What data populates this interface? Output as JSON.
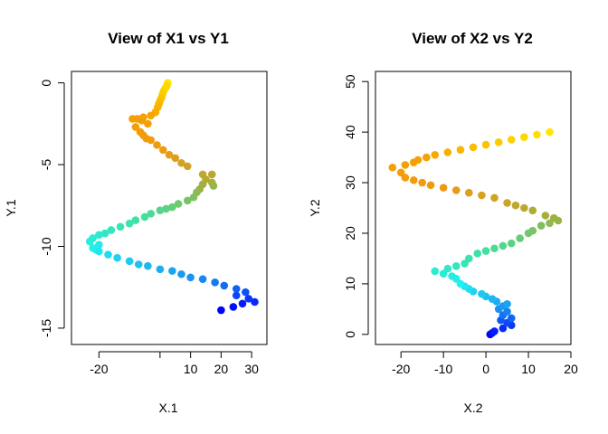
{
  "chart_data": [
    {
      "type": "scatter",
      "title": "View of X1 vs Y1",
      "xlabel": "X.1",
      "ylabel": "Y.1",
      "xlim": [
        -29,
        35
      ],
      "ylim": [
        -16,
        0.7
      ],
      "xticks": [
        -20,
        0,
        10,
        20,
        30
      ],
      "xtick_labels": [
        "-20",
        "",
        "10",
        "20",
        "30"
      ],
      "yticks": [
        -15,
        -10,
        -5,
        0
      ],
      "grid": false,
      "color_gradient": [
        "#ffe600",
        "#f5a200",
        "#f09a10",
        "#a0b040",
        "#40e0a0",
        "#20f0f0",
        "#1a8ff0",
        "#0000ff"
      ],
      "points": [
        [
          2.5,
          0
        ],
        [
          1.8,
          -0.3
        ],
        [
          2.2,
          -0.2
        ],
        [
          1.2,
          -0.5
        ],
        [
          0.8,
          -0.7
        ],
        [
          0.5,
          -0.9
        ],
        [
          0,
          -1.1
        ],
        [
          -0.4,
          -1.3
        ],
        [
          -0.8,
          -1.5
        ],
        [
          -1.5,
          -1.8
        ],
        [
          -3,
          -2.0
        ],
        [
          -5.5,
          -2.1
        ],
        [
          -7.5,
          -2.2
        ],
        [
          -9,
          -2.2
        ],
        [
          -6,
          -2.3
        ],
        [
          -4,
          -2.5
        ],
        [
          -8,
          -2.7
        ],
        [
          -6.5,
          -3.0
        ],
        [
          -5.5,
          -3.2
        ],
        [
          -4.5,
          -3.4
        ],
        [
          -3,
          -3.5
        ],
        [
          -1,
          -3.8
        ],
        [
          1,
          -4.1
        ],
        [
          3,
          -4.4
        ],
        [
          5,
          -4.6
        ],
        [
          7,
          -4.9
        ],
        [
          9,
          -5.1
        ],
        [
          14,
          -5.6
        ],
        [
          17,
          -5.6
        ],
        [
          15,
          -5.9
        ],
        [
          17,
          -6.1
        ],
        [
          14,
          -6.2
        ],
        [
          13,
          -6.5
        ],
        [
          17.5,
          -6.3
        ],
        [
          12,
          -6.7
        ],
        [
          11,
          -7.0
        ],
        [
          9,
          -7.2
        ],
        [
          6,
          -7.4
        ],
        [
          4,
          -7.6
        ],
        [
          2,
          -7.7
        ],
        [
          0,
          -7.8
        ],
        [
          -3,
          -8.0
        ],
        [
          -5,
          -8.2
        ],
        [
          -8,
          -8.4
        ],
        [
          -10,
          -8.6
        ],
        [
          -13,
          -8.8
        ],
        [
          -16,
          -9.0
        ],
        [
          -18,
          -9.2
        ],
        [
          -20,
          -9.3
        ],
        [
          -22,
          -9.5
        ],
        [
          -23,
          -9.7
        ],
        [
          -20,
          -9.9
        ],
        [
          -22,
          -10.1
        ],
        [
          -21,
          -10.2
        ],
        [
          -20,
          -10.3
        ],
        [
          -17,
          -10.5
        ],
        [
          -14,
          -10.7
        ],
        [
          -10,
          -10.9
        ],
        [
          -7,
          -11.1
        ],
        [
          -4,
          -11.2
        ],
        [
          0,
          -11.4
        ],
        [
          4,
          -11.5
        ],
        [
          7,
          -11.7
        ],
        [
          10,
          -11.9
        ],
        [
          14,
          -12.0
        ],
        [
          18,
          -12.2
        ],
        [
          21,
          -12.4
        ],
        [
          25,
          -12.6
        ],
        [
          28,
          -12.8
        ],
        [
          25,
          -13.0
        ],
        [
          29,
          -13.2
        ],
        [
          31,
          -13.4
        ],
        [
          27,
          -13.5
        ],
        [
          24,
          -13.7
        ],
        [
          20,
          -13.9
        ]
      ]
    },
    {
      "type": "scatter",
      "title": "View of X2 vs Y2",
      "xlabel": "X.2",
      "ylabel": "Y.2",
      "xlim": [
        -26,
        20
      ],
      "ylim": [
        -2,
        52
      ],
      "xticks": [
        -20,
        -10,
        0,
        10,
        20
      ],
      "yticks": [
        0,
        10,
        20,
        30,
        40,
        50
      ],
      "grid": false,
      "color_gradient": [
        "#0000ff",
        "#1a8ff0",
        "#20f0f0",
        "#40e0a0",
        "#a0b040",
        "#f09a10",
        "#f5a200",
        "#ffe600"
      ],
      "points": [
        [
          1,
          0
        ],
        [
          1.5,
          0.3
        ],
        [
          2,
          0.6
        ],
        [
          4,
          1.2
        ],
        [
          6,
          1.8
        ],
        [
          5,
          2.3
        ],
        [
          3.5,
          2.8
        ],
        [
          6,
          3.2
        ],
        [
          4,
          3.8
        ],
        [
          5,
          4.5
        ],
        [
          3,
          5
        ],
        [
          4,
          5.6
        ],
        [
          5,
          6
        ],
        [
          2.5,
          6.5
        ],
        [
          1.5,
          7
        ],
        [
          0,
          7.5
        ],
        [
          -1,
          8
        ],
        [
          -3,
          8.5
        ],
        [
          -4,
          9
        ],
        [
          -5,
          9.5
        ],
        [
          -6,
          10
        ],
        [
          -7,
          11
        ],
        [
          -8,
          11.5
        ],
        [
          -10,
          12
        ],
        [
          -12,
          12.5
        ],
        [
          -9,
          13
        ],
        [
          -7,
          13.5
        ],
        [
          -5,
          14
        ],
        [
          -4,
          15
        ],
        [
          -2,
          16
        ],
        [
          0,
          16.5
        ],
        [
          2,
          17
        ],
        [
          4,
          17.5
        ],
        [
          6,
          18
        ],
        [
          8,
          19
        ],
        [
          10,
          20
        ],
        [
          11,
          20.5
        ],
        [
          13,
          21.5
        ],
        [
          15,
          22
        ],
        [
          17,
          22.5
        ],
        [
          16,
          23
        ],
        [
          14,
          23.5
        ],
        [
          11,
          24.5
        ],
        [
          9,
          25
        ],
        [
          7,
          25.5
        ],
        [
          5,
          26
        ],
        [
          2,
          27
        ],
        [
          -1,
          27.5
        ],
        [
          -4,
          28
        ],
        [
          -7,
          28.5
        ],
        [
          -10,
          29
        ],
        [
          -13,
          29.5
        ],
        [
          -15,
          30
        ],
        [
          -17,
          30.5
        ],
        [
          -19,
          31
        ],
        [
          -20,
          32
        ],
        [
          -22,
          33
        ],
        [
          -19,
          33.5
        ],
        [
          -17,
          34
        ],
        [
          -16,
          34.5
        ],
        [
          -14,
          35
        ],
        [
          -12,
          35.5
        ],
        [
          -9,
          36
        ],
        [
          -6,
          36.5
        ],
        [
          -3,
          37
        ],
        [
          0,
          37.5
        ],
        [
          3,
          38
        ],
        [
          6,
          38.5
        ],
        [
          9,
          39
        ],
        [
          12,
          39.5
        ],
        [
          15,
          40
        ]
      ]
    }
  ]
}
